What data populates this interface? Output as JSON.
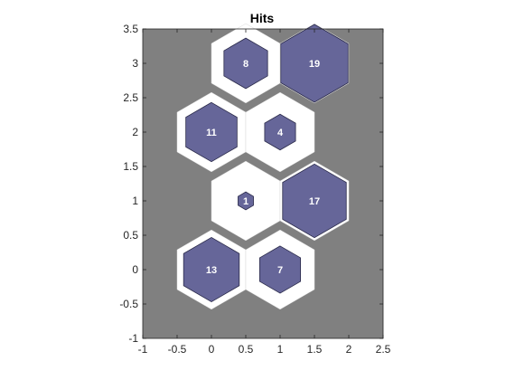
{
  "chart_data": {
    "type": "hexbin-hits",
    "title": "Hits",
    "xlabel": "",
    "ylabel": "",
    "xlim": [
      -1,
      2.5
    ],
    "ylim": [
      -1,
      3.5
    ],
    "xticks": [
      "-1",
      "-0.5",
      "0",
      "0.5",
      "1",
      "1.5",
      "2",
      "2.5"
    ],
    "yticks": [
      "-1",
      "-0.5",
      "0",
      "0.5",
      "1",
      "1.5",
      "2",
      "2.5",
      "3",
      "3.5"
    ],
    "grid": false,
    "colors": {
      "background": "#808080",
      "cell": "#ffffff",
      "hit": "#666699",
      "hit_stroke": "#2b2b4a",
      "label": "#ffffff"
    },
    "max_hits": 19,
    "cells": [
      {
        "x": 0,
        "y": 0,
        "hits": 13
      },
      {
        "x": 1,
        "y": 0,
        "hits": 7
      },
      {
        "x": 0.5,
        "y": 1,
        "hits": 1
      },
      {
        "x": 1.5,
        "y": 1,
        "hits": 17
      },
      {
        "x": 0,
        "y": 2,
        "hits": 11
      },
      {
        "x": 1,
        "y": 2,
        "hits": 4
      },
      {
        "x": 0.5,
        "y": 3,
        "hits": 8
      },
      {
        "x": 1.5,
        "y": 3,
        "hits": 19
      }
    ]
  }
}
